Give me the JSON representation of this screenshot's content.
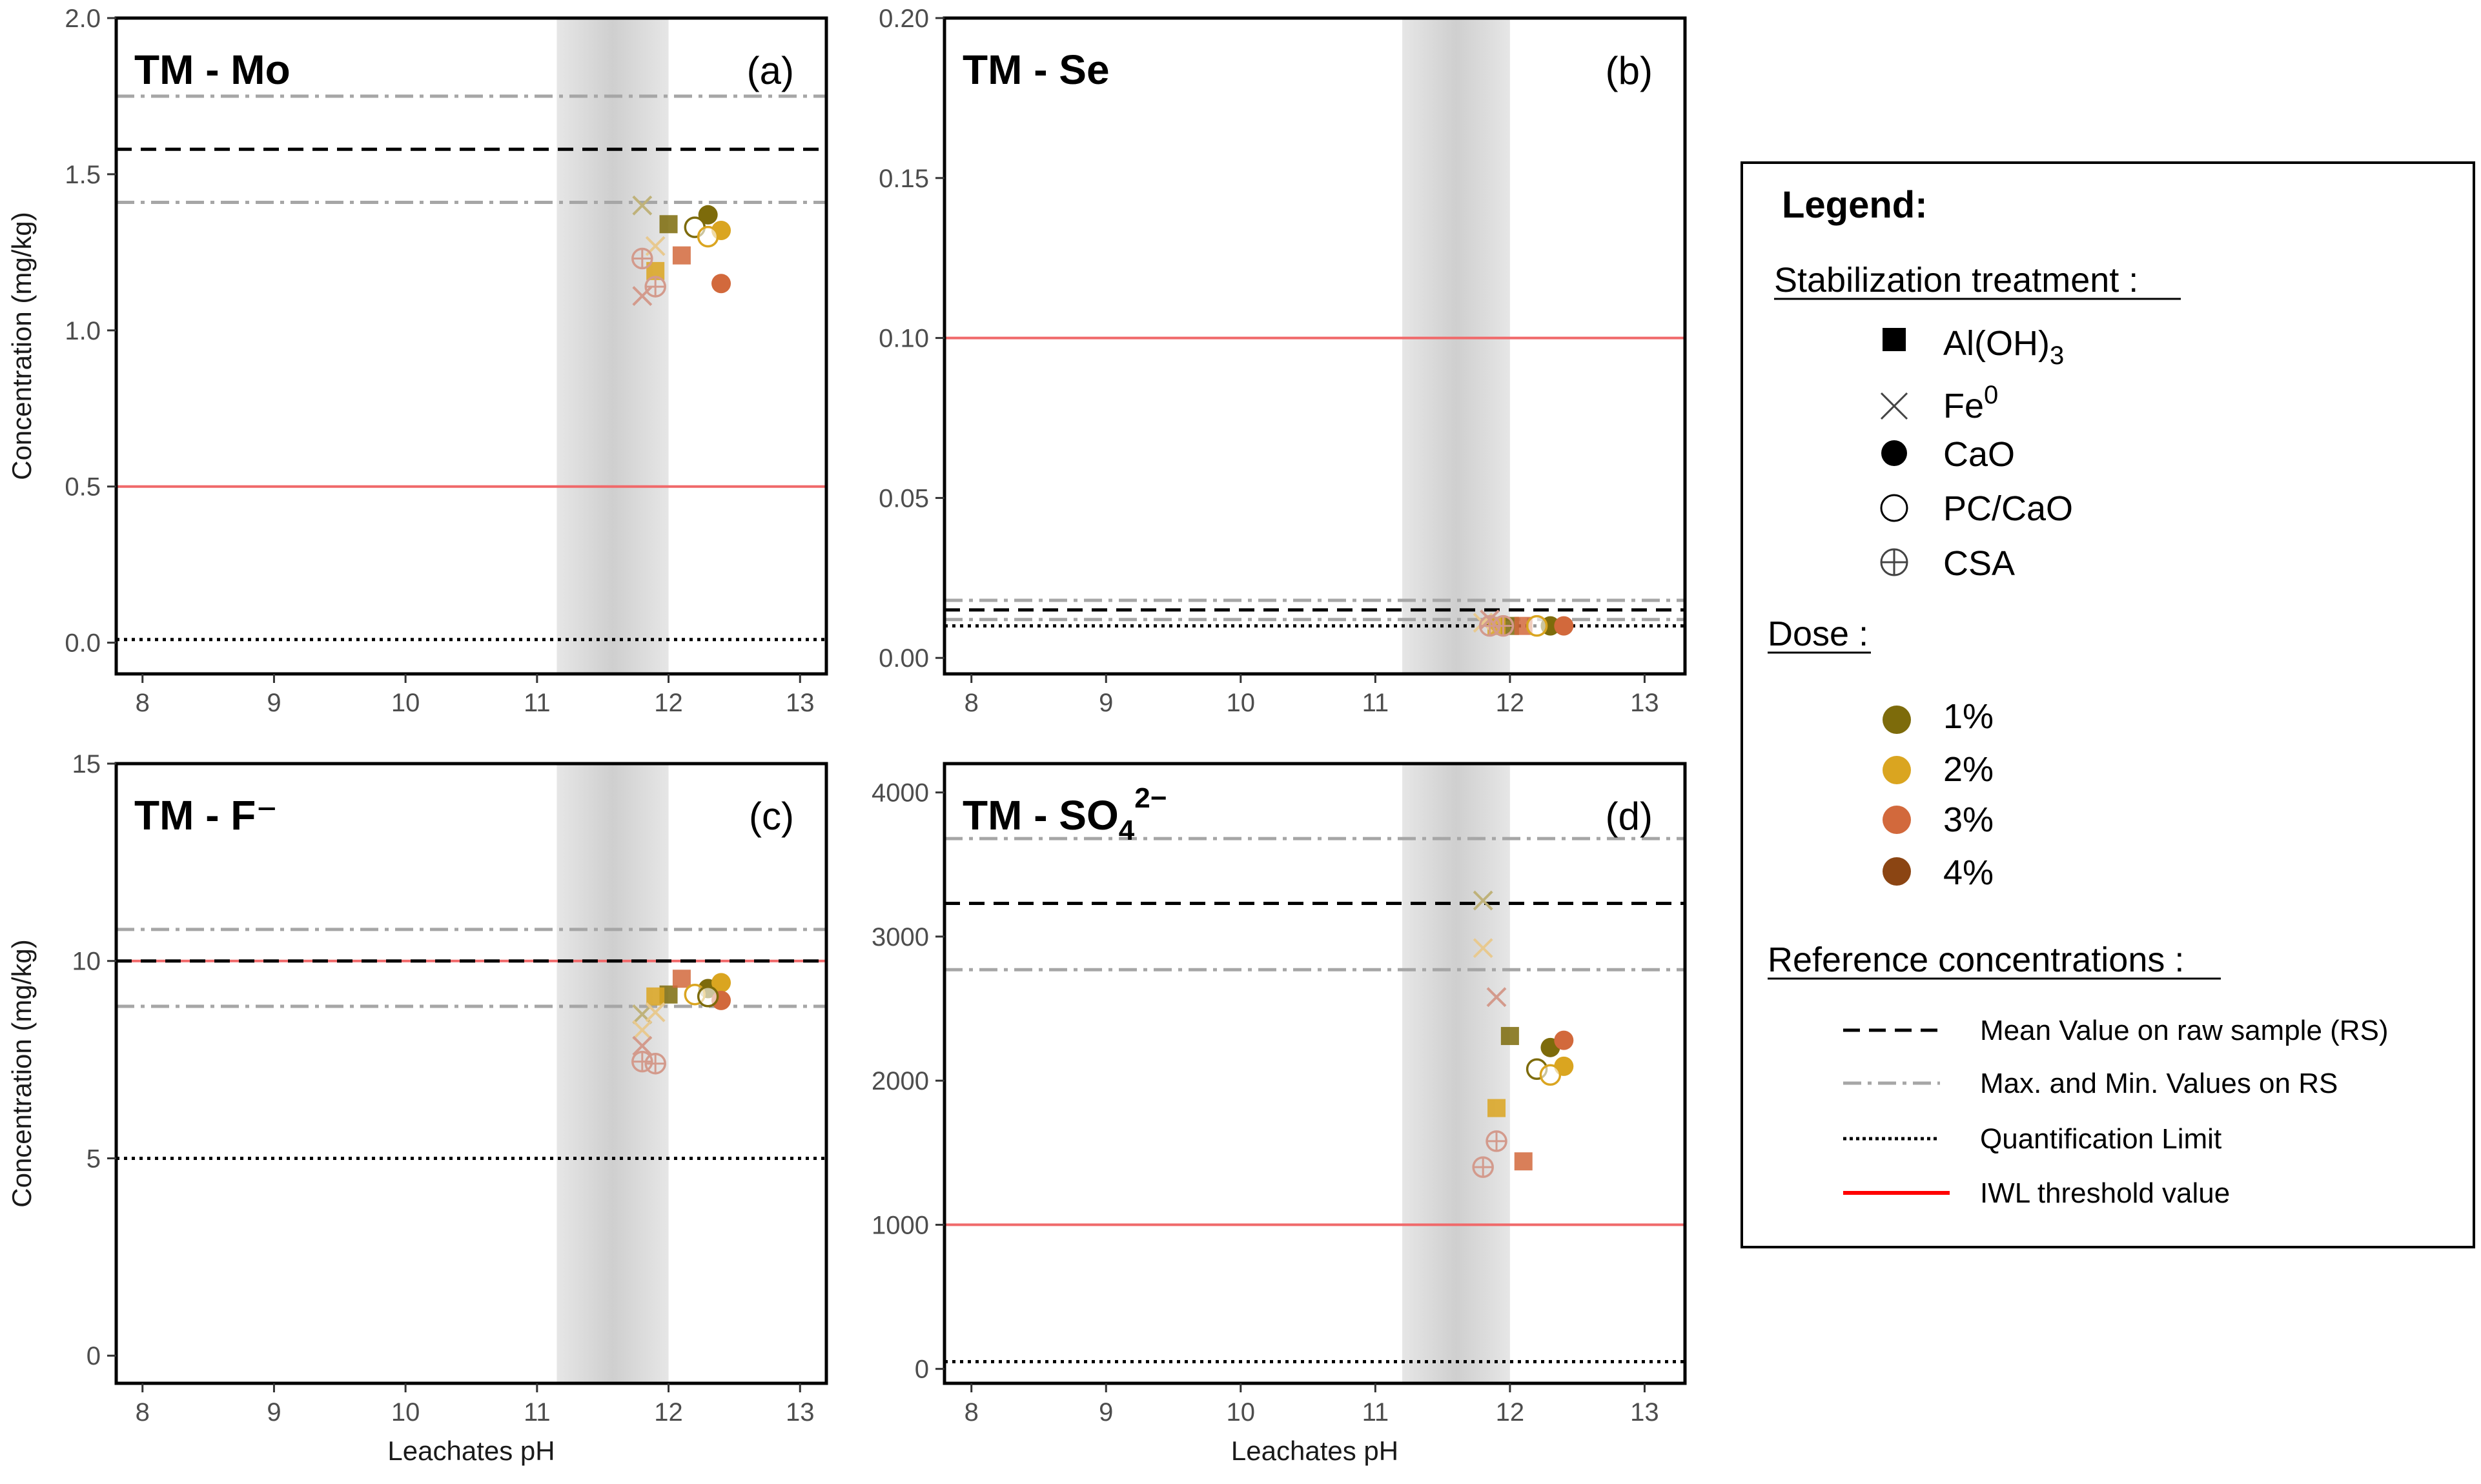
{
  "chart_data": [
    {
      "id": "a",
      "type": "scatter",
      "title": "TM - Mo",
      "panel_label": "(a)",
      "xlabel": "",
      "ylabel": "Concentration (mg/kg)",
      "xlim": [
        7.8,
        13.2
      ],
      "ylim": [
        -0.1,
        2.0
      ],
      "x_ticks": [
        8,
        9,
        10,
        11,
        12,
        13
      ],
      "y_ticks": [
        0.0,
        0.5,
        1.0,
        1.5,
        2.0
      ],
      "y_tick_labels": [
        "0.0",
        "0.5",
        "1.0",
        "1.5",
        "2.0"
      ],
      "shaded_ph_range": [
        11.15,
        12.0
      ],
      "reference_lines": {
        "mean_rs": 1.58,
        "max_rs": 1.75,
        "min_rs": 1.41,
        "quantification_limit": 0.01,
        "iwl": 0.5
      },
      "points": [
        {
          "x": 12.0,
          "y": 1.34,
          "marker": "square",
          "dose": "1%"
        },
        {
          "x": 11.9,
          "y": 1.19,
          "marker": "square",
          "dose": "2%"
        },
        {
          "x": 12.1,
          "y": 1.24,
          "marker": "square",
          "dose": "3%"
        },
        {
          "x": 11.8,
          "y": 1.4,
          "marker": "cross",
          "dose": "1%"
        },
        {
          "x": 11.9,
          "y": 1.27,
          "marker": "cross",
          "dose": "2%"
        },
        {
          "x": 11.8,
          "y": 1.11,
          "marker": "cross",
          "dose": "3%"
        },
        {
          "x": 12.3,
          "y": 1.37,
          "marker": "circle",
          "dose": "1%"
        },
        {
          "x": 12.4,
          "y": 1.32,
          "marker": "circle",
          "dose": "2%"
        },
        {
          "x": 12.4,
          "y": 1.15,
          "marker": "circle",
          "dose": "3%"
        },
        {
          "x": 12.2,
          "y": 1.33,
          "marker": "open-circle",
          "dose": "1%"
        },
        {
          "x": 12.3,
          "y": 1.3,
          "marker": "open-circle",
          "dose": "2%"
        },
        {
          "x": 11.8,
          "y": 1.23,
          "marker": "crossed-circle",
          "dose": "3%"
        },
        {
          "x": 11.9,
          "y": 1.14,
          "marker": "crossed-circle",
          "dose": "3%"
        }
      ]
    },
    {
      "id": "b",
      "type": "scatter",
      "title": "TM - Se",
      "panel_label": "(b)",
      "xlabel": "",
      "ylabel": "",
      "xlim": [
        7.8,
        13.3
      ],
      "ylim": [
        -0.005,
        0.2
      ],
      "x_ticks": [
        8,
        9,
        10,
        11,
        12,
        13
      ],
      "y_ticks": [
        0.0,
        0.05,
        0.1,
        0.15,
        0.2
      ],
      "y_tick_labels": [
        "0.00",
        "0.05",
        "0.10",
        "0.15",
        "0.20"
      ],
      "shaded_ph_range": [
        11.2,
        12.0
      ],
      "reference_lines": {
        "mean_rs": 0.015,
        "max_rs": 0.018,
        "min_rs": 0.012,
        "quantification_limit": 0.01,
        "iwl": 0.1
      },
      "points": [
        {
          "x": 12.0,
          "y": 0.01,
          "marker": "square",
          "dose": "1%"
        },
        {
          "x": 11.9,
          "y": 0.01,
          "marker": "square",
          "dose": "2%"
        },
        {
          "x": 12.1,
          "y": 0.01,
          "marker": "square",
          "dose": "3%"
        },
        {
          "x": 11.8,
          "y": 0.011,
          "marker": "cross",
          "dose": "2%"
        },
        {
          "x": 11.85,
          "y": 0.012,
          "marker": "cross",
          "dose": "3%"
        },
        {
          "x": 12.3,
          "y": 0.01,
          "marker": "circle",
          "dose": "1%"
        },
        {
          "x": 12.4,
          "y": 0.01,
          "marker": "circle",
          "dose": "3%"
        },
        {
          "x": 12.2,
          "y": 0.01,
          "marker": "open-circle",
          "dose": "2%"
        },
        {
          "x": 11.85,
          "y": 0.01,
          "marker": "crossed-circle",
          "dose": "3%"
        },
        {
          "x": 11.95,
          "y": 0.01,
          "marker": "crossed-circle",
          "dose": "3%"
        }
      ]
    },
    {
      "id": "c",
      "type": "scatter",
      "title": "TM - F⁻",
      "panel_label": "(c)",
      "xlabel": "Leachates pH",
      "ylabel": "Concentration (mg/kg)",
      "xlim": [
        7.8,
        13.2
      ],
      "ylim": [
        -0.7,
        15.0
      ],
      "x_ticks": [
        8,
        9,
        10,
        11,
        12,
        13
      ],
      "y_ticks": [
        0,
        5,
        10,
        15
      ],
      "y_tick_labels": [
        "0",
        "5",
        "10",
        "15"
      ],
      "shaded_ph_range": [
        11.15,
        12.0
      ],
      "reference_lines": {
        "mean_rs": 10.0,
        "max_rs": 10.8,
        "min_rs": 8.85,
        "quantification_limit": 5.0,
        "iwl": 10.0
      },
      "points": [
        {
          "x": 12.0,
          "y": 9.15,
          "marker": "square",
          "dose": "1%"
        },
        {
          "x": 11.9,
          "y": 9.1,
          "marker": "square",
          "dose": "2%"
        },
        {
          "x": 12.1,
          "y": 9.55,
          "marker": "square",
          "dose": "3%"
        },
        {
          "x": 11.8,
          "y": 8.65,
          "marker": "cross",
          "dose": "1%"
        },
        {
          "x": 11.9,
          "y": 8.7,
          "marker": "cross",
          "dose": "2%"
        },
        {
          "x": 11.8,
          "y": 8.25,
          "marker": "cross",
          "dose": "2%"
        },
        {
          "x": 11.8,
          "y": 7.85,
          "marker": "cross",
          "dose": "3%"
        },
        {
          "x": 12.3,
          "y": 9.3,
          "marker": "circle",
          "dose": "1%"
        },
        {
          "x": 12.4,
          "y": 9.45,
          "marker": "circle",
          "dose": "2%"
        },
        {
          "x": 12.4,
          "y": 9.0,
          "marker": "circle",
          "dose": "3%"
        },
        {
          "x": 12.2,
          "y": 9.15,
          "marker": "open-circle",
          "dose": "2%"
        },
        {
          "x": 12.3,
          "y": 9.1,
          "marker": "open-circle",
          "dose": "1%"
        },
        {
          "x": 11.8,
          "y": 7.45,
          "marker": "crossed-circle",
          "dose": "3%"
        },
        {
          "x": 11.9,
          "y": 7.4,
          "marker": "crossed-circle",
          "dose": "3%"
        }
      ]
    },
    {
      "id": "d",
      "type": "scatter",
      "title": "TM - SO",
      "title_subscript": "4",
      "title_superscript": "2−",
      "panel_label": "(d)",
      "xlabel": "Leachates pH",
      "ylabel": "",
      "xlim": [
        7.8,
        13.3
      ],
      "ylim": [
        -100,
        4200
      ],
      "x_ticks": [
        8,
        9,
        10,
        11,
        12,
        13
      ],
      "y_ticks": [
        0,
        1000,
        2000,
        3000,
        4000
      ],
      "y_tick_labels": [
        "0",
        "1000",
        "2000",
        "3000",
        "4000"
      ],
      "shaded_ph_range": [
        11.2,
        12.0
      ],
      "reference_lines": {
        "mean_rs": 3230,
        "max_rs": 3680,
        "min_rs": 2770,
        "quantification_limit": 50,
        "iwl": 1000
      },
      "points": [
        {
          "x": 12.0,
          "y": 2310,
          "marker": "square",
          "dose": "1%"
        },
        {
          "x": 11.9,
          "y": 1810,
          "marker": "square",
          "dose": "2%"
        },
        {
          "x": 12.1,
          "y": 1440,
          "marker": "square",
          "dose": "3%"
        },
        {
          "x": 11.8,
          "y": 3250,
          "marker": "cross",
          "dose": "1%"
        },
        {
          "x": 11.8,
          "y": 2920,
          "marker": "cross",
          "dose": "2%"
        },
        {
          "x": 11.9,
          "y": 2580,
          "marker": "cross",
          "dose": "3%"
        },
        {
          "x": 12.3,
          "y": 2230,
          "marker": "circle",
          "dose": "1%"
        },
        {
          "x": 12.4,
          "y": 2100,
          "marker": "circle",
          "dose": "2%"
        },
        {
          "x": 12.4,
          "y": 2280,
          "marker": "circle",
          "dose": "3%"
        },
        {
          "x": 12.2,
          "y": 2080,
          "marker": "open-circle",
          "dose": "1%"
        },
        {
          "x": 12.3,
          "y": 2040,
          "marker": "open-circle",
          "dose": "2%"
        },
        {
          "x": 11.9,
          "y": 1580,
          "marker": "crossed-circle",
          "dose": "3%"
        },
        {
          "x": 11.8,
          "y": 1400,
          "marker": "crossed-circle",
          "dose": "3%"
        }
      ]
    }
  ],
  "dose_colors": {
    "1%": "#7d6b0b",
    "2%": "#daa520",
    "3%": "#d2693c",
    "4%": "#8b4513"
  },
  "light_dose_colors": {
    "1%": "#bfb27a",
    "2%": "#e8c98f",
    "3%": "#d39a8c",
    "4%": "#b98a6b"
  },
  "colors": {
    "iwl": "#f0696a",
    "minmax": "#a6a6a6",
    "shade": "#d9d9d9",
    "legend_iwl": "#ff0000"
  },
  "legend": {
    "title": "Legend:",
    "treatment_heading": "Stabilization treatment :",
    "treatments": [
      {
        "label": "Al(OH)",
        "sub": "3",
        "marker": "square"
      },
      {
        "label": "Fe",
        "sup": "0",
        "marker": "cross"
      },
      {
        "label": "CaO",
        "marker": "circle"
      },
      {
        "label": "PC/CaO",
        "marker": "open-circle"
      },
      {
        "label": "CSA",
        "marker": "crossed-circle"
      }
    ],
    "dose_heading": "Dose :",
    "doses": [
      "1%",
      "2%",
      "3%",
      "4%"
    ],
    "reference_heading": "Reference concentrations :",
    "references": [
      {
        "label": "Mean Value on raw sample (RS)",
        "style": "dashed"
      },
      {
        "label": "Max. and Min. Values on RS",
        "style": "dashdot"
      },
      {
        "label": "Quantification Limit",
        "style": "dotted"
      },
      {
        "label": "IWL threshold value",
        "style": "solid-red"
      }
    ]
  }
}
